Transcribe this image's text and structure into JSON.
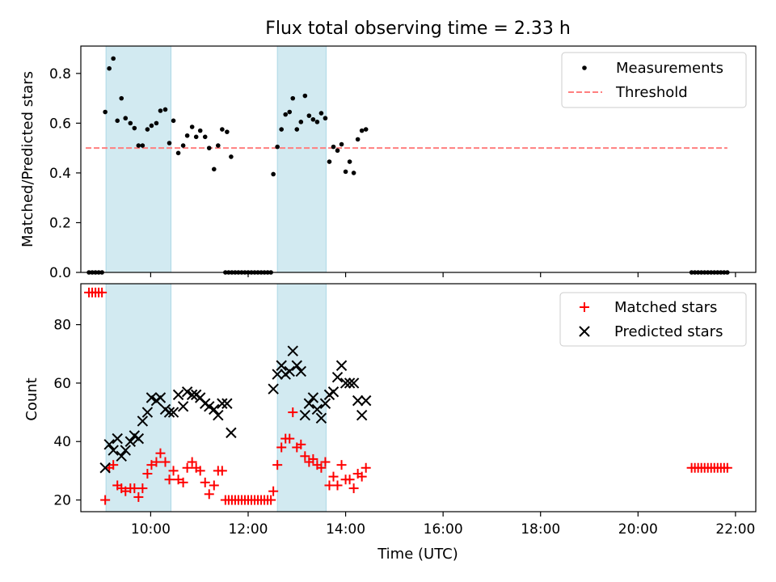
{
  "figure": {
    "title": "Flux total observing time = 2.33 h",
    "xlabel": "Time (UTC)"
  },
  "colors": {
    "shade": "#add8e6",
    "threshold": "#ff7f7f",
    "matched": "#ff0000",
    "predicted": "#000000",
    "measurement": "#000000"
  },
  "chart_data": [
    {
      "type": "scatter",
      "ylabel": "Matched/Predicted stars",
      "xlim": [
        "08:34",
        "22:25"
      ],
      "ylim": [
        0,
        0.91
      ],
      "x_ticks": [
        "10:00",
        "12:00",
        "14:00",
        "16:00",
        "18:00",
        "20:00",
        "22:00"
      ],
      "x_tick_labels_shown": false,
      "y_ticks": [
        0.0,
        0.2,
        0.4,
        0.6,
        0.8
      ],
      "y_tick_labels": [
        "0.0",
        "0.2",
        "0.4",
        "0.6",
        "0.8"
      ],
      "grid": false,
      "legend_position": "upper right",
      "legend": [
        "Measurements",
        "Threshold"
      ],
      "shaded_intervals": [
        [
          "09:05",
          "10:25"
        ],
        [
          "12:36",
          "13:36"
        ]
      ],
      "threshold": {
        "name": "Threshold",
        "y": 0.5,
        "x_start": "08:40",
        "x_end": "21:50"
      },
      "series": [
        {
          "name": "Measurements",
          "points": [
            [
              "08:44",
              0
            ],
            [
              "08:48",
              0
            ],
            [
              "08:52",
              0
            ],
            [
              "08:56",
              0
            ],
            [
              "09:00",
              0
            ],
            [
              "09:04",
              0.645
            ],
            [
              "09:09",
              0.82
            ],
            [
              "09:14",
              0.86
            ],
            [
              "09:19",
              0.61
            ],
            [
              "09:24",
              0.7
            ],
            [
              "09:29",
              0.62
            ],
            [
              "09:35",
              0.6
            ],
            [
              "09:40",
              0.58
            ],
            [
              "09:45",
              0.51
            ],
            [
              "09:50",
              0.51
            ],
            [
              "09:56",
              0.575
            ],
            [
              "10:01",
              0.59
            ],
            [
              "10:07",
              0.6
            ],
            [
              "10:12",
              0.65
            ],
            [
              "10:18",
              0.655
            ],
            [
              "10:23",
              0.52
            ],
            [
              "10:28",
              0.61
            ],
            [
              "10:34",
              0.48
            ],
            [
              "10:40",
              0.51
            ],
            [
              "10:45",
              0.55
            ],
            [
              "10:51",
              0.585
            ],
            [
              "10:56",
              0.545
            ],
            [
              "11:01",
              0.57
            ],
            [
              "11:07",
              0.545
            ],
            [
              "11:12",
              0.5
            ],
            [
              "11:18",
              0.415
            ],
            [
              "11:23",
              0.51
            ],
            [
              "11:28",
              0.575
            ],
            [
              "11:34",
              0.565
            ],
            [
              "11:39",
              0.465
            ],
            [
              "11:32",
              0
            ],
            [
              "11:36",
              0
            ],
            [
              "11:40",
              0
            ],
            [
              "11:44",
              0
            ],
            [
              "11:48",
              0
            ],
            [
              "11:52",
              0
            ],
            [
              "11:56",
              0
            ],
            [
              "12:00",
              0
            ],
            [
              "12:04",
              0
            ],
            [
              "12:08",
              0
            ],
            [
              "12:12",
              0
            ],
            [
              "12:16",
              0
            ],
            [
              "12:20",
              0
            ],
            [
              "12:24",
              0
            ],
            [
              "12:28",
              0
            ],
            [
              "12:31",
              0.395
            ],
            [
              "12:36",
              0.505
            ],
            [
              "12:41",
              0.575
            ],
            [
              "12:46",
              0.635
            ],
            [
              "12:51",
              0.645
            ],
            [
              "12:55",
              0.7
            ],
            [
              "13:00",
              0.575
            ],
            [
              "13:05",
              0.605
            ],
            [
              "13:10",
              0.71
            ],
            [
              "13:15",
              0.63
            ],
            [
              "13:20",
              0.615
            ],
            [
              "13:25",
              0.605
            ],
            [
              "13:30",
              0.64
            ],
            [
              "13:35",
              0.62
            ],
            [
              "13:40",
              0.445
            ],
            [
              "13:45",
              0.505
            ],
            [
              "13:50",
              0.49
            ],
            [
              "13:55",
              0.515
            ],
            [
              "14:00",
              0.405
            ],
            [
              "14:05",
              0.445
            ],
            [
              "14:10",
              0.4
            ],
            [
              "14:15",
              0.535
            ],
            [
              "14:20",
              0.57
            ],
            [
              "14:25",
              0.575
            ],
            [
              "21:06",
              0
            ],
            [
              "21:10",
              0
            ],
            [
              "21:14",
              0
            ],
            [
              "21:18",
              0
            ],
            [
              "21:22",
              0
            ],
            [
              "21:26",
              0
            ],
            [
              "21:30",
              0
            ],
            [
              "21:34",
              0
            ],
            [
              "21:38",
              0
            ],
            [
              "21:42",
              0
            ],
            [
              "21:46",
              0
            ],
            [
              "21:50",
              0
            ]
          ]
        }
      ]
    },
    {
      "type": "scatter",
      "ylabel": "Count",
      "xlabel": "Time (UTC)",
      "xlim": [
        "08:34",
        "22:25"
      ],
      "ylim": [
        16,
        94
      ],
      "x_ticks": [
        "10:00",
        "12:00",
        "14:00",
        "16:00",
        "18:00",
        "20:00",
        "22:00"
      ],
      "x_tick_labels": [
        "10:00",
        "12:00",
        "14:00",
        "16:00",
        "18:00",
        "20:00",
        "22:00"
      ],
      "y_ticks": [
        20,
        40,
        60,
        80
      ],
      "y_tick_labels": [
        "20",
        "40",
        "60",
        "80"
      ],
      "grid": false,
      "legend_position": "upper right",
      "legend": [
        "Matched stars",
        "Predicted stars"
      ],
      "shaded_intervals": [
        [
          "09:05",
          "10:25"
        ],
        [
          "12:36",
          "13:36"
        ]
      ],
      "series": [
        {
          "name": "Matched stars",
          "marker": "+",
          "points": [
            [
              "08:44",
              91
            ],
            [
              "08:48",
              91
            ],
            [
              "08:52",
              91
            ],
            [
              "08:56",
              91
            ],
            [
              "09:00",
              91
            ],
            [
              "09:04",
              20
            ],
            [
              "09:09",
              31
            ],
            [
              "09:14",
              32
            ],
            [
              "09:19",
              25
            ],
            [
              "09:24",
              24
            ],
            [
              "09:29",
              23
            ],
            [
              "09:35",
              24
            ],
            [
              "09:40",
              24
            ],
            [
              "09:45",
              21
            ],
            [
              "09:50",
              24
            ],
            [
              "09:56",
              29
            ],
            [
              "10:01",
              32
            ],
            [
              "10:07",
              33
            ],
            [
              "10:12",
              36
            ],
            [
              "10:18",
              33
            ],
            [
              "10:23",
              27
            ],
            [
              "10:28",
              30
            ],
            [
              "10:34",
              27
            ],
            [
              "10:40",
              26
            ],
            [
              "10:45",
              31
            ],
            [
              "10:51",
              33
            ],
            [
              "10:56",
              31
            ],
            [
              "11:01",
              30
            ],
            [
              "11:07",
              26
            ],
            [
              "11:12",
              22
            ],
            [
              "11:18",
              25
            ],
            [
              "11:23",
              30
            ],
            [
              "11:28",
              30
            ],
            [
              "11:32",
              20
            ],
            [
              "11:36",
              20
            ],
            [
              "11:40",
              20
            ],
            [
              "11:44",
              20
            ],
            [
              "11:48",
              20
            ],
            [
              "11:52",
              20
            ],
            [
              "11:56",
              20
            ],
            [
              "12:00",
              20
            ],
            [
              "12:04",
              20
            ],
            [
              "12:08",
              20
            ],
            [
              "12:12",
              20
            ],
            [
              "12:16",
              20
            ],
            [
              "12:20",
              20
            ],
            [
              "12:24",
              20
            ],
            [
              "12:28",
              20
            ],
            [
              "12:31",
              23
            ],
            [
              "12:36",
              32
            ],
            [
              "12:41",
              38
            ],
            [
              "12:46",
              41
            ],
            [
              "12:51",
              41
            ],
            [
              "12:55",
              50
            ],
            [
              "13:00",
              38
            ],
            [
              "13:05",
              39
            ],
            [
              "13:10",
              35
            ],
            [
              "13:15",
              33
            ],
            [
              "13:20",
              34
            ],
            [
              "13:25",
              32
            ],
            [
              "13:30",
              31
            ],
            [
              "13:35",
              33
            ],
            [
              "13:40",
              25
            ],
            [
              "13:45",
              28
            ],
            [
              "13:50",
              25
            ],
            [
              "13:55",
              32
            ],
            [
              "14:00",
              27
            ],
            [
              "14:05",
              27
            ],
            [
              "14:10",
              24
            ],
            [
              "14:15",
              29
            ],
            [
              "14:20",
              28
            ],
            [
              "14:25",
              31
            ],
            [
              "21:06",
              31
            ],
            [
              "21:10",
              31
            ],
            [
              "21:14",
              31
            ],
            [
              "21:18",
              31
            ],
            [
              "21:22",
              31
            ],
            [
              "21:26",
              31
            ],
            [
              "21:30",
              31
            ],
            [
              "21:34",
              31
            ],
            [
              "21:38",
              31
            ],
            [
              "21:42",
              31
            ],
            [
              "21:46",
              31
            ],
            [
              "21:50",
              31
            ]
          ]
        },
        {
          "name": "Predicted stars",
          "marker": "x",
          "points": [
            [
              "09:04",
              31
            ],
            [
              "09:09",
              39
            ],
            [
              "09:14",
              37
            ],
            [
              "09:19",
              41
            ],
            [
              "09:24",
              35
            ],
            [
              "09:29",
              37
            ],
            [
              "09:35",
              40
            ],
            [
              "09:40",
              42
            ],
            [
              "09:45",
              41
            ],
            [
              "09:50",
              47
            ],
            [
              "09:56",
              50
            ],
            [
              "10:01",
              55
            ],
            [
              "10:07",
              54
            ],
            [
              "10:12",
              55
            ],
            [
              "10:18",
              51
            ],
            [
              "10:23",
              50
            ],
            [
              "10:28",
              50
            ],
            [
              "10:34",
              56
            ],
            [
              "10:40",
              52
            ],
            [
              "10:45",
              57
            ],
            [
              "10:51",
              56
            ],
            [
              "10:56",
              56
            ],
            [
              "11:01",
              55
            ],
            [
              "11:07",
              53
            ],
            [
              "11:12",
              52
            ],
            [
              "11:18",
              51
            ],
            [
              "11:23",
              49
            ],
            [
              "11:28",
              53
            ],
            [
              "11:34",
              53
            ],
            [
              "11:39",
              43
            ],
            [
              "12:31",
              58
            ],
            [
              "12:36",
              63
            ],
            [
              "12:41",
              66
            ],
            [
              "12:46",
              63
            ],
            [
              "12:51",
              64
            ],
            [
              "12:55",
              71
            ],
            [
              "13:00",
              66
            ],
            [
              "13:05",
              64
            ],
            [
              "13:10",
              49
            ],
            [
              "13:15",
              53
            ],
            [
              "13:20",
              55
            ],
            [
              "13:25",
              51
            ],
            [
              "13:30",
              48
            ],
            [
              "13:35",
              53
            ],
            [
              "13:40",
              56
            ],
            [
              "13:45",
              57
            ],
            [
              "13:50",
              62
            ],
            [
              "13:55",
              66
            ],
            [
              "14:00",
              60
            ],
            [
              "14:05",
              60
            ],
            [
              "14:10",
              60
            ],
            [
              "14:15",
              54
            ],
            [
              "14:20",
              49
            ],
            [
              "14:25",
              54
            ]
          ]
        }
      ]
    }
  ]
}
